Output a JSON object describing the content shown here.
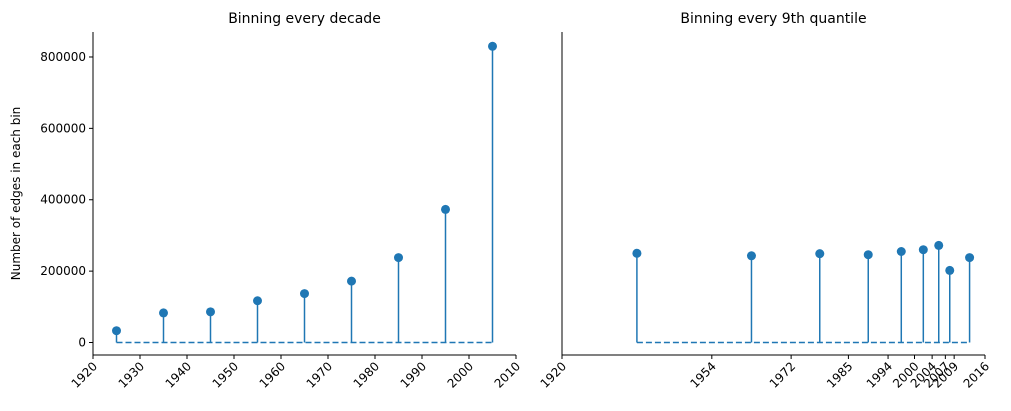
{
  "chart_data": [
    {
      "type": "stem",
      "title": "Binning every decade",
      "ylabel": "Number of edges in each bin",
      "xlabel": "",
      "xlim": [
        1920,
        2010
      ],
      "ylim": [
        -35000,
        870000
      ],
      "xticks": [
        1920,
        1930,
        1940,
        1950,
        1960,
        1970,
        1980,
        1990,
        2000,
        2010
      ],
      "yticks": [
        0,
        200000,
        400000,
        600000,
        800000
      ],
      "ytick_labels": [
        "0",
        "200000",
        "400000",
        "600000",
        "800000"
      ],
      "x": [
        1925,
        1935,
        1945,
        1955,
        1965,
        1975,
        1985,
        1995,
        2005
      ],
      "values": [
        33000,
        83000,
        86000,
        117000,
        137000,
        172000,
        238000,
        373000,
        830000
      ],
      "color": "#1f77b4",
      "baseline": "dashed"
    },
    {
      "type": "stem",
      "title": "Binning every 9th quantile",
      "ylabel": "",
      "xlabel": "",
      "xlim": [
        1920,
        2016
      ],
      "ylim": [
        -35000,
        870000
      ],
      "xticks": [
        1920,
        1954,
        1972,
        1985,
        1994,
        2000,
        2004,
        2007,
        2009,
        2016
      ],
      "x": [
        1937,
        1963,
        1978.5,
        1989.5,
        1997,
        2002,
        2005.5,
        2008,
        2012.5
      ],
      "values": [
        250000,
        243000,
        249000,
        246000,
        255000,
        260000,
        272000,
        202000,
        238000
      ],
      "color": "#1f77b4",
      "baseline": "dashed"
    }
  ]
}
